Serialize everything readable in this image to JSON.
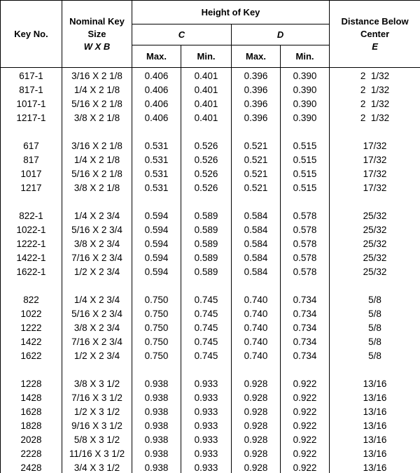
{
  "table": {
    "header": {
      "key_no": "Key No.",
      "nominal": "Nominal Key Size",
      "nominal_sub": "W X B",
      "height": "Height of Key",
      "c": "C",
      "d": "D",
      "c_max": "Max.",
      "c_min": "Min.",
      "d_max": "Max.",
      "d_min": "Min.",
      "distance": "Distance Below Center",
      "distance_sub": "E"
    },
    "groups": [
      {
        "rows": [
          [
            "617-1",
            "3/16 X 2 1/8",
            "0.406",
            "0.401",
            "0.396",
            "0.390",
            "2  1/32"
          ],
          [
            "817-1",
            "1/4 X 2 1/8",
            "0.406",
            "0.401",
            "0.396",
            "0.390",
            "2  1/32"
          ],
          [
            "1017-1",
            "5/16 X 2 1/8",
            "0.406",
            "0.401",
            "0.396",
            "0.390",
            "2  1/32"
          ],
          [
            "1217-1",
            "3/8 X 2 1/8",
            "0.406",
            "0.401",
            "0.396",
            "0.390",
            "2  1/32"
          ]
        ]
      },
      {
        "rows": [
          [
            "617",
            "3/16 X 2 1/8",
            "0.531",
            "0.526",
            "0.521",
            "0.515",
            "17/32"
          ],
          [
            "817",
            "1/4 X 2 1/8",
            "0.531",
            "0.526",
            "0.521",
            "0.515",
            "17/32"
          ],
          [
            "1017",
            "5/16 X 2 1/8",
            "0.531",
            "0.526",
            "0.521",
            "0.515",
            "17/32"
          ],
          [
            "1217",
            "3/8 X 2 1/8",
            "0.531",
            "0.526",
            "0.521",
            "0.515",
            "17/32"
          ]
        ]
      },
      {
        "rows": [
          [
            "822-1",
            "1/4 X 2 3/4",
            "0.594",
            "0.589",
            "0.584",
            "0.578",
            "25/32"
          ],
          [
            "1022-1",
            "5/16 X 2 3/4",
            "0.594",
            "0.589",
            "0.584",
            "0.578",
            "25/32"
          ],
          [
            "1222-1",
            "3/8 X 2 3/4",
            "0.594",
            "0.589",
            "0.584",
            "0.578",
            "25/32"
          ],
          [
            "1422-1",
            "7/16 X 2 3/4",
            "0.594",
            "0.589",
            "0.584",
            "0.578",
            "25/32"
          ],
          [
            "1622-1",
            "1/2 X 2 3/4",
            "0.594",
            "0.589",
            "0.584",
            "0.578",
            "25/32"
          ]
        ]
      },
      {
        "rows": [
          [
            "822",
            "1/4 X 2 3/4",
            "0.750",
            "0.745",
            "0.740",
            "0.734",
            "5/8"
          ],
          [
            "1022",
            "5/16 X 2 3/4",
            "0.750",
            "0.745",
            "0.740",
            "0.734",
            "5/8"
          ],
          [
            "1222",
            "3/8 X 2 3/4",
            "0.750",
            "0.745",
            "0.740",
            "0.734",
            "5/8"
          ],
          [
            "1422",
            "7/16 X 2 3/4",
            "0.750",
            "0.745",
            "0.740",
            "0.734",
            "5/8"
          ],
          [
            "1622",
            "1/2 X 2 3/4",
            "0.750",
            "0.745",
            "0.740",
            "0.734",
            "5/8"
          ]
        ]
      },
      {
        "rows": [
          [
            "1228",
            "3/8 X 3 1/2",
            "0.938",
            "0.933",
            "0.928",
            "0.922",
            "13/16"
          ],
          [
            "1428",
            "7/16 X 3 1/2",
            "0.938",
            "0.933",
            "0.928",
            "0.922",
            "13/16"
          ],
          [
            "1628",
            "1/2 X 3 1/2",
            "0.938",
            "0.933",
            "0.928",
            "0.922",
            "13/16"
          ],
          [
            "1828",
            "9/16 X 3 1/2",
            "0.938",
            "0.933",
            "0.928",
            "0.922",
            "13/16"
          ],
          [
            "2028",
            "5/8 X 3 1/2",
            "0.938",
            "0.933",
            "0.928",
            "0.922",
            "13/16"
          ],
          [
            "2228",
            "11/16 X 3 1/2",
            "0.938",
            "0.933",
            "0.928",
            "0.922",
            "13/16"
          ],
          [
            "2428",
            "3/4 X 3 1/2",
            "0.938",
            "0.933",
            "0.928",
            "0.922",
            "13/16"
          ]
        ]
      }
    ]
  }
}
